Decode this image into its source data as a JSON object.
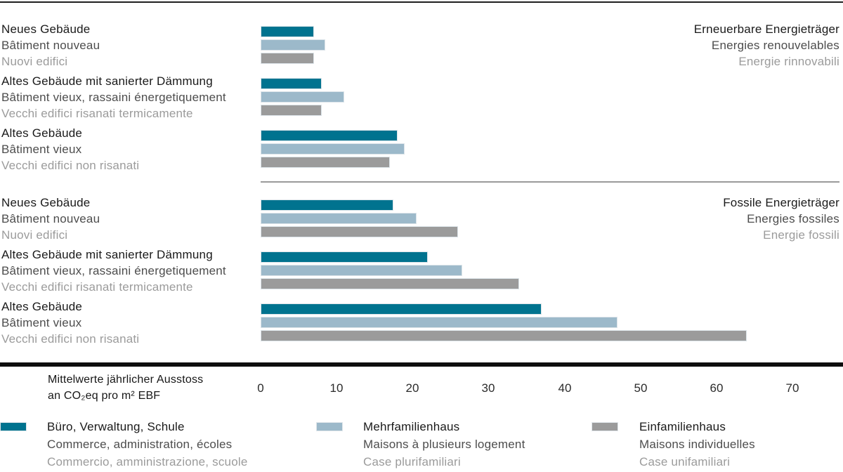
{
  "chart_data": {
    "type": "bar",
    "orientation": "horizontal",
    "title": "",
    "axis_caption": [
      "Mittelwerte jährlicher Ausstoss",
      "an CO₂eq pro m² EBF"
    ],
    "unit_axis": {
      "ticks": [
        0,
        10,
        20,
        30,
        40,
        50,
        60,
        70
      ],
      "max": 70,
      "grid": false
    },
    "legend_position": "bottom",
    "series": [
      {
        "id": "buero",
        "name": "Büro, Verwaltung, Schule",
        "color": "#00738f"
      },
      {
        "id": "mehrfamilienhaus",
        "name": "Mehrfamilienhaus",
        "color": "#9cb9ca"
      },
      {
        "id": "einfamilienhaus",
        "name": "Einfamilienhaus",
        "color": "#9b9b9b"
      }
    ],
    "sections": [
      {
        "id": "renewable",
        "header": [
          "Erneuerbare Energieträger",
          "Energies renouvelables",
          "Energie rinnovabili"
        ],
        "groups": [
          {
            "labels": [
              "Neues Gebäude",
              "Bâtiment nouveau",
              "Nuovi edifici"
            ],
            "values": [
              7,
              8.5,
              7
            ]
          },
          {
            "labels": [
              "Altes Gebäude mit sanierter Dämmung",
              "Bâtiment vieux, rassaini énergetiquement",
              "Vecchi edifici risanati termicamente"
            ],
            "values": [
              8,
              11,
              8
            ]
          },
          {
            "labels": [
              "Altes Gebäude",
              "Bâtiment vieux",
              "Vecchi edifici non risanati"
            ],
            "values": [
              18,
              19,
              17
            ]
          }
        ]
      },
      {
        "id": "fossil",
        "header": [
          "Fossile Energieträger",
          "Energies fossiles",
          "Energie fossili"
        ],
        "groups": [
          {
            "labels": [
              "Neues Gebäude",
              "Bâtiment nouveau",
              "Nuovi edifici"
            ],
            "values": [
              17.5,
              20.5,
              26
            ]
          },
          {
            "labels": [
              "Altes Gebäude mit sanierter Dämmung",
              "Bâtiment vieux, rassaini énergetiquement",
              "Vecchi edifici risanati termicamente"
            ],
            "values": [
              22,
              26.5,
              34
            ]
          },
          {
            "labels": [
              "Altes Gebäude",
              "Bâtiment vieux",
              "Vecchi edifici non risanati"
            ],
            "values": [
              37,
              47,
              64
            ]
          }
        ]
      }
    ]
  },
  "legend": {
    "entries": [
      {
        "id": "buero",
        "color": "#00738f",
        "lines": [
          "Büro, Verwaltung, Schule",
          "Commerce, administration, écoles",
          "Commercio, amministrazione, scuole"
        ]
      },
      {
        "id": "mehrfamilienhaus",
        "color": "#9cb9ca",
        "lines": [
          "Mehrfamilienhaus",
          "Maisons à plusieurs logement",
          "Case plurifamiliari"
        ]
      },
      {
        "id": "einfamilienhaus",
        "color": "#9b9b9b",
        "lines": [
          "Einfamilienhaus",
          "Maisons individuelles",
          "Case unifamiliari"
        ]
      }
    ]
  }
}
